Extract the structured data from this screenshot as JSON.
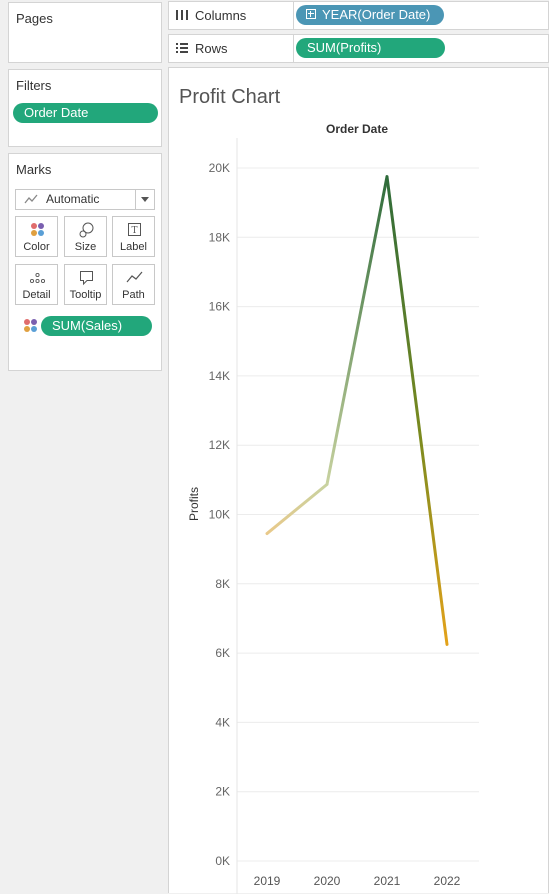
{
  "pages": {
    "title": "Pages"
  },
  "filters": {
    "title": "Filters",
    "pill": "Order Date"
  },
  "marks": {
    "title": "Marks",
    "mark_type": "Automatic",
    "buttons": [
      {
        "label": "Color",
        "icon": "color-dots-icon"
      },
      {
        "label": "Size",
        "icon": "size-circles-icon"
      },
      {
        "label": "Label",
        "icon": "label-text-icon"
      },
      {
        "label": "Detail",
        "icon": "detail-dots-icon"
      },
      {
        "label": "Tooltip",
        "icon": "tooltip-bubble-icon"
      },
      {
        "label": "Path",
        "icon": "path-line-icon"
      }
    ],
    "color_field": "SUM(Sales)"
  },
  "shelves": {
    "columns": {
      "label": "Columns",
      "pill": "YEAR(Order Date)"
    },
    "rows": {
      "label": "Rows",
      "pill": "SUM(Profits)"
    }
  },
  "colors": {
    "green_pill": "#22a77b",
    "blue_pill": "#4b96b5",
    "gradient_low": "#e9c98a",
    "gradient_mid": "#c8d2a0",
    "gradient_high": "#2e6b3a",
    "gradient_end": "#e3a21a"
  },
  "chart_data": {
    "type": "line",
    "title": "Profit Chart",
    "header": "Order Date",
    "xlabel": "",
    "ylabel": "Profits",
    "x": [
      "2019",
      "2020",
      "2021",
      "2022"
    ],
    "series": [
      {
        "values": [
          9450,
          10870,
          19750,
          6250
        ]
      }
    ],
    "yticks": [
      "0K",
      "2K",
      "4K",
      "6K",
      "8K",
      "10K",
      "12K",
      "14K",
      "16K",
      "18K",
      "20K"
    ],
    "ylim": [
      0,
      20000
    ],
    "grid": true,
    "color_by": "SUM(Sales)"
  }
}
